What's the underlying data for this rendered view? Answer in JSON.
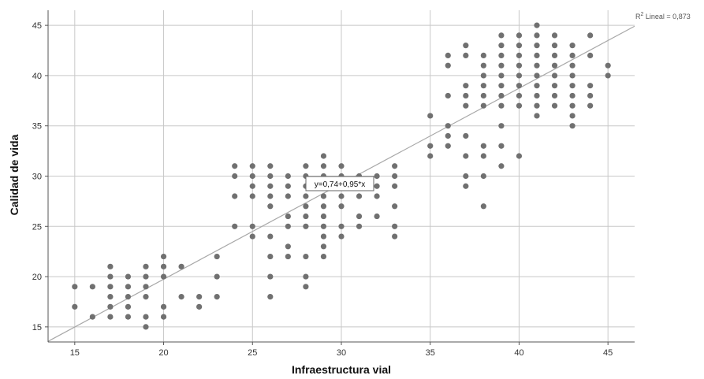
{
  "chart_data": {
    "type": "scatter",
    "xlabel": "Infraestructura vial",
    "ylabel": "Calidad de vida",
    "xlim": [
      13.5,
      46.5
    ],
    "ylim": [
      13.5,
      46.5
    ],
    "x_ticks": [
      "15",
      "20",
      "25",
      "30",
      "35",
      "40",
      "45"
    ],
    "y_ticks": [
      "15",
      "20",
      "25",
      "30",
      "35",
      "40",
      "45"
    ],
    "grid": true,
    "marker_color": "#707070",
    "line_color": "#a8a8a8",
    "fit_line": {
      "intercept": 0.74,
      "slope": 0.95,
      "label": "y=0,74+0,95*x"
    },
    "r2_label": {
      "prefix": "R",
      "sup": "2",
      "suffix": " Lineal = 0,873"
    },
    "points": [
      [
        15,
        17
      ],
      [
        15,
        19
      ],
      [
        16,
        16
      ],
      [
        16,
        19
      ],
      [
        17,
        16
      ],
      [
        17,
        17
      ],
      [
        17,
        18
      ],
      [
        17,
        19
      ],
      [
        17,
        20
      ],
      [
        17,
        21
      ],
      [
        18,
        16
      ],
      [
        18,
        17
      ],
      [
        18,
        18
      ],
      [
        18,
        19
      ],
      [
        18,
        20
      ],
      [
        19,
        15
      ],
      [
        19,
        16
      ],
      [
        19,
        18
      ],
      [
        19,
        19
      ],
      [
        19,
        20
      ],
      [
        19,
        21
      ],
      [
        20,
        16
      ],
      [
        20,
        17
      ],
      [
        20,
        20
      ],
      [
        20,
        21
      ],
      [
        20,
        22
      ],
      [
        21,
        18
      ],
      [
        21,
        21
      ],
      [
        22,
        17
      ],
      [
        22,
        18
      ],
      [
        23,
        18
      ],
      [
        23,
        20
      ],
      [
        23,
        22
      ],
      [
        24,
        25
      ],
      [
        24,
        28
      ],
      [
        24,
        30
      ],
      [
        24,
        31
      ],
      [
        25,
        24
      ],
      [
        25,
        25
      ],
      [
        25,
        28
      ],
      [
        25,
        29
      ],
      [
        25,
        30
      ],
      [
        25,
        31
      ],
      [
        26,
        18
      ],
      [
        26,
        20
      ],
      [
        26,
        22
      ],
      [
        26,
        24
      ],
      [
        26,
        27
      ],
      [
        26,
        28
      ],
      [
        26,
        29
      ],
      [
        26,
        30
      ],
      [
        26,
        31
      ],
      [
        27,
        22
      ],
      [
        27,
        23
      ],
      [
        27,
        25
      ],
      [
        27,
        26
      ],
      [
        27,
        28
      ],
      [
        27,
        29
      ],
      [
        27,
        30
      ],
      [
        28,
        19
      ],
      [
        28,
        20
      ],
      [
        28,
        22
      ],
      [
        28,
        25
      ],
      [
        28,
        26
      ],
      [
        28,
        27
      ],
      [
        28,
        28
      ],
      [
        28,
        29
      ],
      [
        28,
        30
      ],
      [
        28,
        31
      ],
      [
        29,
        22
      ],
      [
        29,
        23
      ],
      [
        29,
        24
      ],
      [
        29,
        25
      ],
      [
        29,
        26
      ],
      [
        29,
        27
      ],
      [
        29,
        28
      ],
      [
        29,
        29
      ],
      [
        29,
        30
      ],
      [
        29,
        31
      ],
      [
        29,
        32
      ],
      [
        30,
        24
      ],
      [
        30,
        25
      ],
      [
        30,
        27
      ],
      [
        30,
        28
      ],
      [
        30,
        29
      ],
      [
        30,
        30
      ],
      [
        30,
        31
      ],
      [
        31,
        25
      ],
      [
        31,
        26
      ],
      [
        31,
        28
      ],
      [
        31,
        29
      ],
      [
        31,
        30
      ],
      [
        32,
        26
      ],
      [
        32,
        28
      ],
      [
        32,
        29
      ],
      [
        32,
        30
      ],
      [
        33,
        24
      ],
      [
        33,
        25
      ],
      [
        33,
        27
      ],
      [
        33,
        29
      ],
      [
        33,
        30
      ],
      [
        33,
        31
      ],
      [
        35,
        32
      ],
      [
        35,
        33
      ],
      [
        35,
        36
      ],
      [
        36,
        33
      ],
      [
        36,
        34
      ],
      [
        36,
        35
      ],
      [
        36,
        38
      ],
      [
        36,
        41
      ],
      [
        36,
        42
      ],
      [
        37,
        29
      ],
      [
        37,
        30
      ],
      [
        37,
        32
      ],
      [
        37,
        34
      ],
      [
        37,
        37
      ],
      [
        37,
        38
      ],
      [
        37,
        39
      ],
      [
        37,
        42
      ],
      [
        37,
        43
      ],
      [
        38,
        27
      ],
      [
        38,
        30
      ],
      [
        38,
        32
      ],
      [
        38,
        33
      ],
      [
        38,
        37
      ],
      [
        38,
        38
      ],
      [
        38,
        39
      ],
      [
        38,
        40
      ],
      [
        38,
        41
      ],
      [
        38,
        42
      ],
      [
        39,
        31
      ],
      [
        39,
        33
      ],
      [
        39,
        35
      ],
      [
        39,
        37
      ],
      [
        39,
        38
      ],
      [
        39,
        39
      ],
      [
        39,
        40
      ],
      [
        39,
        41
      ],
      [
        39,
        42
      ],
      [
        39,
        43
      ],
      [
        39,
        44
      ],
      [
        40,
        32
      ],
      [
        40,
        37
      ],
      [
        40,
        38
      ],
      [
        40,
        39
      ],
      [
        40,
        40
      ],
      [
        40,
        41
      ],
      [
        40,
        42
      ],
      [
        40,
        43
      ],
      [
        40,
        44
      ],
      [
        41,
        36
      ],
      [
        41,
        37
      ],
      [
        41,
        38
      ],
      [
        41,
        39
      ],
      [
        41,
        40
      ],
      [
        41,
        41
      ],
      [
        41,
        42
      ],
      [
        41,
        43
      ],
      [
        41,
        44
      ],
      [
        41,
        45
      ],
      [
        42,
        37
      ],
      [
        42,
        38
      ],
      [
        42,
        39
      ],
      [
        42,
        40
      ],
      [
        42,
        41
      ],
      [
        42,
        42
      ],
      [
        42,
        43
      ],
      [
        42,
        44
      ],
      [
        43,
        35
      ],
      [
        43,
        36
      ],
      [
        43,
        37
      ],
      [
        43,
        38
      ],
      [
        43,
        39
      ],
      [
        43,
        40
      ],
      [
        43,
        41
      ],
      [
        43,
        42
      ],
      [
        43,
        43
      ],
      [
        44,
        37
      ],
      [
        44,
        38
      ],
      [
        44,
        39
      ],
      [
        44,
        42
      ],
      [
        44,
        44
      ],
      [
        45,
        40
      ],
      [
        45,
        41
      ]
    ]
  }
}
